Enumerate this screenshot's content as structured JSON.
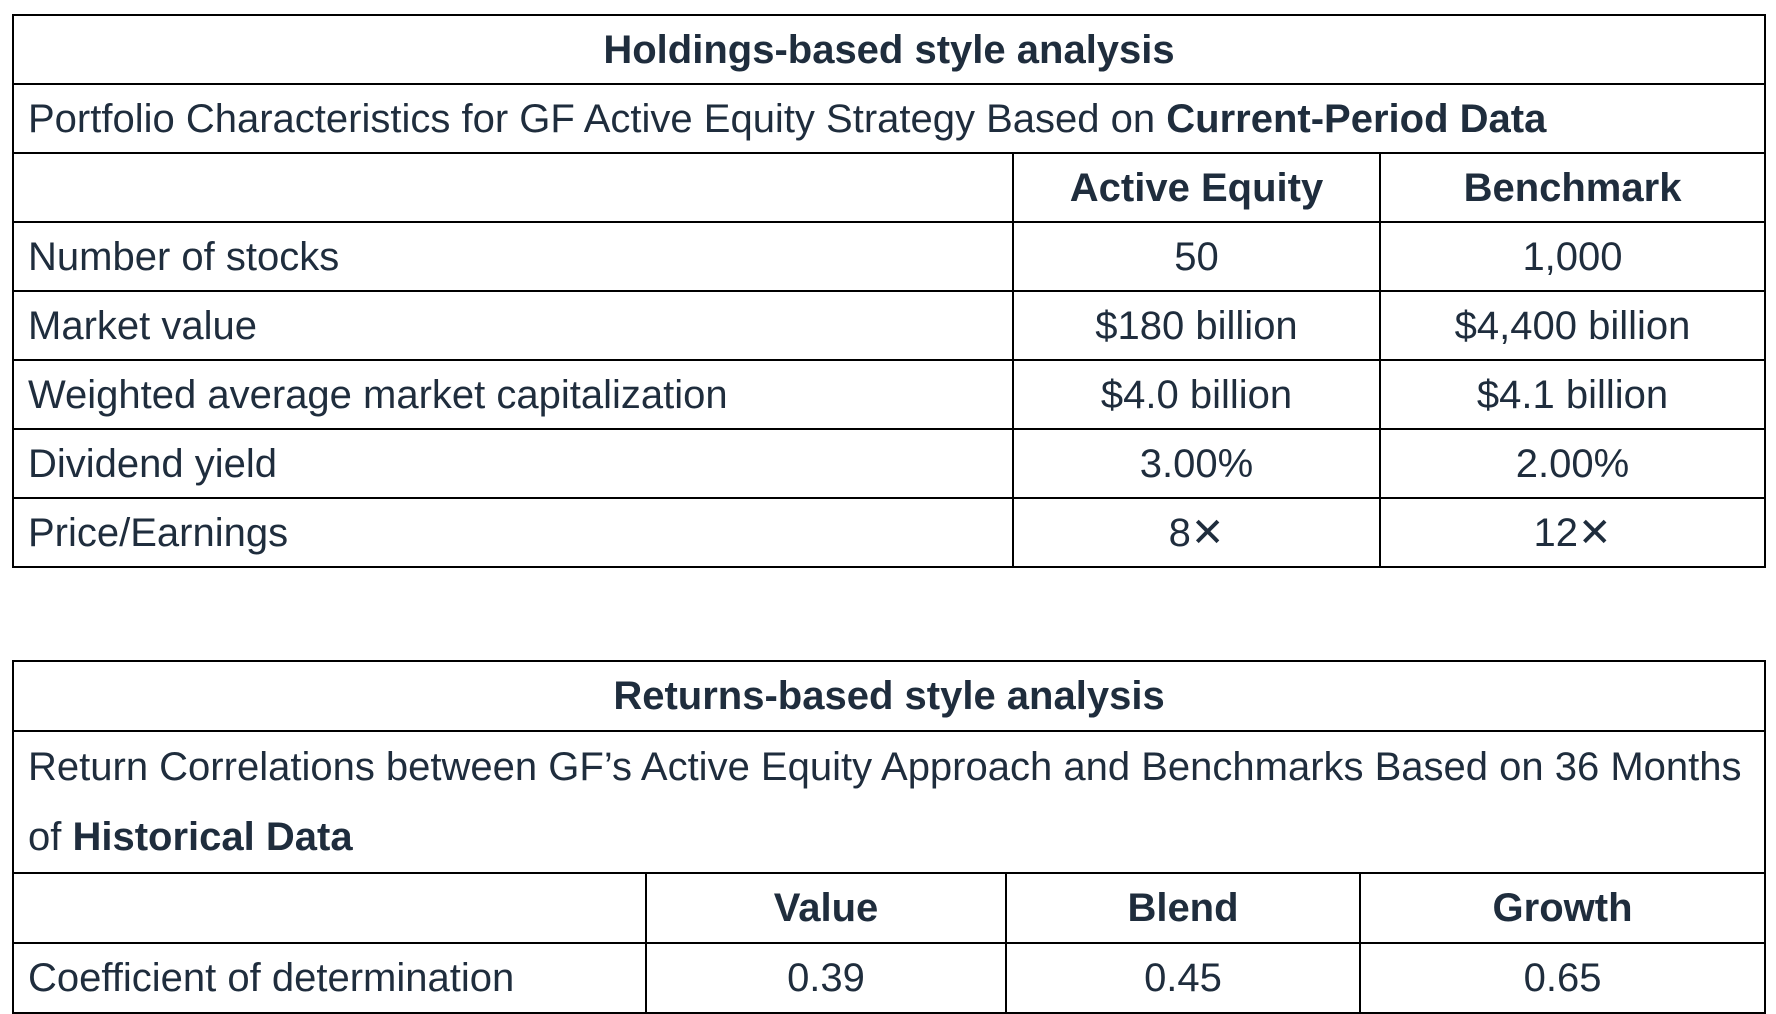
{
  "holdings": {
    "title": "Holdings-based style analysis",
    "subtitle_prefix": "Portfolio Characteristics for GF Active Equity Strategy Based on ",
    "subtitle_bold": "Current-Period Data",
    "columns": [
      "",
      "Active Equity",
      "Benchmark"
    ],
    "rows": [
      {
        "label": "Number of stocks",
        "active": "50",
        "benchmark": "1,000"
      },
      {
        "label": "Market value",
        "active": "$180 billion",
        "benchmark": "$4,400 billion"
      },
      {
        "label": "Weighted average market capitalization",
        "active": "$4.0 billion",
        "benchmark": "$4.1 billion"
      },
      {
        "label": "Dividend yield",
        "active": "3.00%",
        "benchmark": "2.00%"
      },
      {
        "label": "Price/Earnings",
        "active": "8✕",
        "benchmark": "12✕"
      }
    ]
  },
  "returns": {
    "title": "Returns-based style analysis",
    "subtitle_prefix": "Return Correlations between GF’s Active Equity Approach and Benchmarks Based on 36 Months of ",
    "subtitle_bold": "Historical Data",
    "columns": [
      "",
      "Value",
      "Blend",
      "Growth"
    ],
    "rows": [
      {
        "label": "Coefficient of determination",
        "value": "0.39",
        "blend": "0.45",
        "growth": "0.65"
      }
    ]
  }
}
